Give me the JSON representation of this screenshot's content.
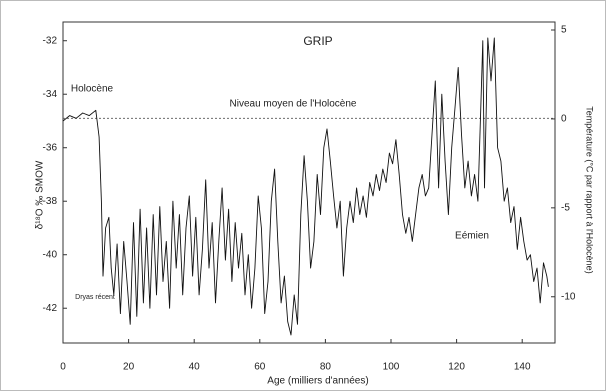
{
  "chart_data": {
    "type": "line",
    "title": "GRIP",
    "x_label": "Age (milliers d'années)",
    "y_label": "δ¹⁸O ‰ SMOW",
    "y2_label": "Température (°C par rapport à l'Holocène)",
    "annotations": [
      "Holocène",
      "Eémien",
      "Dryas récent"
    ],
    "reference_line": {
      "value": -34.9,
      "label": "Niveau moyen de l'Holocène"
    },
    "xlim": [
      0,
      150
    ],
    "xticks": [
      0,
      20,
      40,
      60,
      80,
      100,
      120,
      140
    ],
    "ylim": [
      -43.3,
      -31.3
    ],
    "yticks": [
      -32,
      -34,
      -36,
      -38,
      -40,
      -42
    ],
    "y2lim": [
      -12.6,
      5.45
    ],
    "y2ticks": [
      5,
      0,
      -5,
      -10
    ],
    "x": [
      0,
      2,
      4,
      6,
      8,
      10,
      11,
      11.7,
      12.2,
      13,
      14,
      14.7,
      15.5,
      16.5,
      17.5,
      18.5,
      19.5,
      20.5,
      21.5,
      22.5,
      23.5,
      24.5,
      25.5,
      26.5,
      27.5,
      28.5,
      29.5,
      30.5,
      31.5,
      32.5,
      33.5,
      34.5,
      35.5,
      36.5,
      37.5,
      38.5,
      39.5,
      40.5,
      41.5,
      42.5,
      43.5,
      44.5,
      45.5,
      46.5,
      47.5,
      48.5,
      49.5,
      50.5,
      51.5,
      52.5,
      53.5,
      54.5,
      55.5,
      56.5,
      57.5,
      58.5,
      59.5,
      60.5,
      61.5,
      62.5,
      63.5,
      64.5,
      65.5,
      66.5,
      67.5,
      68.5,
      69.5,
      70.5,
      71.5,
      72.5,
      73.5,
      74.5,
      75.5,
      76.5,
      77.5,
      78.5,
      79.5,
      80.5,
      81.5,
      82.5,
      83.5,
      84.5,
      85.5,
      86.5,
      87.5,
      88.5,
      89.5,
      90.5,
      91.5,
      92.5,
      93.5,
      94.5,
      95.5,
      96.5,
      97.5,
      98.5,
      99.5,
      100.5,
      101.5,
      102.5,
      103.5,
      104.5,
      105.5,
      106.5,
      107.5,
      108.5,
      109.5,
      110.5,
      111.5,
      112.5,
      113.5,
      114.5,
      115.5,
      116.5,
      117.5,
      118.5,
      119.5,
      120.5,
      121.5,
      122.5,
      123.5,
      124.5,
      125.5,
      126.5,
      127.5,
      128,
      128.5,
      129.5,
      130.5,
      131.5,
      132.5,
      133.5,
      134.5,
      135.5,
      136.5,
      137.5,
      138.5,
      139.5,
      140.5,
      141.5,
      142.5,
      143.5,
      144.5,
      145.5,
      146.5,
      147.5,
      148
    ],
    "series": [
      {
        "color": "#111111",
        "values": [
          -35.0,
          -34.8,
          -34.9,
          -34.7,
          -34.8,
          -34.6,
          -35.6,
          -38.0,
          -40.8,
          -39.0,
          -38.6,
          -40.5,
          -41.5,
          -39.6,
          -42.2,
          -39.5,
          -41.0,
          -42.6,
          -38.8,
          -42.3,
          -38.3,
          -41.8,
          -39.0,
          -42.0,
          -38.5,
          -41.5,
          -38.2,
          -41.0,
          -39.5,
          -42.0,
          -38.0,
          -40.5,
          -38.5,
          -41.5,
          -39.0,
          -37.8,
          -40.8,
          -38.6,
          -41.5,
          -39.8,
          -37.2,
          -40.5,
          -38.8,
          -41.8,
          -39.5,
          -37.5,
          -40.2,
          -38.3,
          -41.0,
          -38.8,
          -40.5,
          -39.2,
          -41.5,
          -40.0,
          -42.0,
          -40.5,
          -37.8,
          -39.0,
          -42.2,
          -41.0,
          -38.0,
          -36.8,
          -39.5,
          -41.8,
          -40.8,
          -42.5,
          -43.0,
          -41.5,
          -42.6,
          -38.5,
          -36.3,
          -38.0,
          -40.5,
          -39.5,
          -37.0,
          -38.5,
          -36.0,
          -35.3,
          -36.5,
          -37.8,
          -39.0,
          -38.0,
          -40.8,
          -39.0,
          -38.0,
          -38.8,
          -37.5,
          -38.5,
          -37.8,
          -38.6,
          -37.3,
          -37.8,
          -37.0,
          -37.6,
          -36.8,
          -37.3,
          -36.2,
          -36.6,
          -35.7,
          -37.0,
          -38.5,
          -39.2,
          -38.6,
          -39.5,
          -38.5,
          -37.5,
          -37.0,
          -37.8,
          -37.5,
          -35.5,
          -33.5,
          -37.5,
          -34.0,
          -36.5,
          -38.5,
          -36.0,
          -34.5,
          -33.0,
          -35.5,
          -37.5,
          -36.5,
          -37.8,
          -37.0,
          -38.0,
          -34.0,
          -32.0,
          -37.5,
          -31.9,
          -33.5,
          -31.9,
          -36.0,
          -36.5,
          -38.0,
          -37.5,
          -38.8,
          -38.2,
          -39.8,
          -38.6,
          -39.5,
          -40.2,
          -40.0,
          -41.0,
          -40.5,
          -41.8,
          -40.3,
          -40.8,
          -41.2
        ]
      }
    ]
  }
}
